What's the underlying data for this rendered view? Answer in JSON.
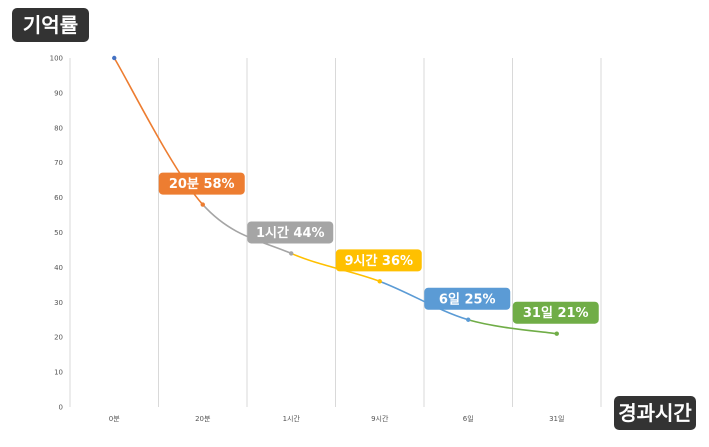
{
  "y_axis_title": "기억률",
  "x_axis_title": "경과시간",
  "chart_data": {
    "type": "line",
    "title": "",
    "xlabel": "경과시간",
    "ylabel": "기억률",
    "ylim": [
      0,
      100
    ],
    "y_ticks": [
      0,
      10,
      20,
      30,
      40,
      50,
      60,
      70,
      80,
      90,
      100
    ],
    "categories": [
      "0분",
      "20분",
      "1시간",
      "9시간",
      "6일",
      "31일"
    ],
    "values": [
      100,
      58,
      44,
      36,
      25,
      21
    ],
    "segment_colors": [
      "#ED7D31",
      "#A5A5A5",
      "#FFC000",
      "#5B9BD5",
      "#70AD47"
    ],
    "start_point_color": "#4472C4",
    "vertical_grid": true,
    "horizontal_grid": false,
    "callouts": [
      {
        "index": 1,
        "text": "20분 58%",
        "color": "#ED7D31"
      },
      {
        "index": 2,
        "text": "1시간 44%",
        "color": "#A5A5A5"
      },
      {
        "index": 3,
        "text": "9시간 36%",
        "color": "#FFC000"
      },
      {
        "index": 4,
        "text": "6일 25%",
        "color": "#5B9BD5"
      },
      {
        "index": 5,
        "text": "31일 21%",
        "color": "#70AD47"
      }
    ]
  }
}
